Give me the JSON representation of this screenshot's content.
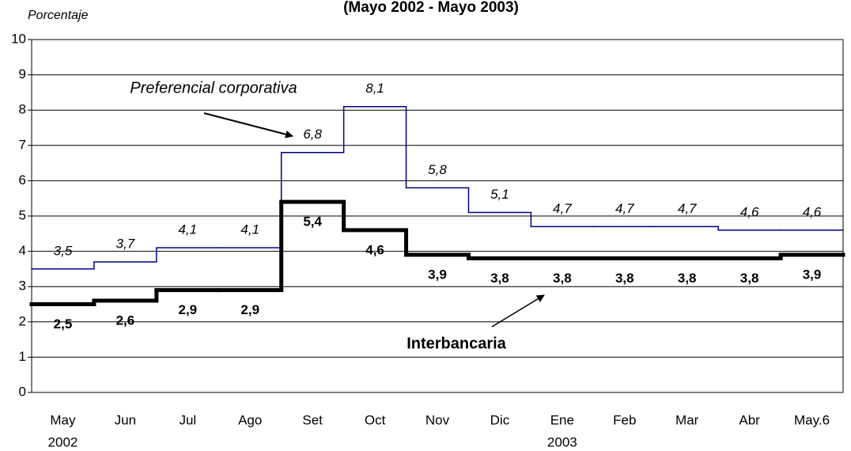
{
  "chart_data": {
    "type": "step-line",
    "title": "(Mayo 2002 - Mayo 2003)",
    "y_label": "Porcentaje",
    "categories": [
      "May",
      "Jun",
      "Jul",
      "Ago",
      "Set",
      "Oct",
      "Nov",
      "Dic",
      "Ene",
      "Feb",
      "Mar",
      "Abr",
      "May.6"
    ],
    "category_sublabels": [
      "2002",
      null,
      null,
      null,
      null,
      null,
      null,
      null,
      "2003",
      null,
      null,
      null,
      null
    ],
    "series": [
      {
        "name": "Preferencial corporativa",
        "color": "#000080",
        "width": 1.5,
        "label_style": "italic",
        "label_side": "above",
        "values": [
          3.5,
          3.7,
          4.1,
          4.1,
          6.8,
          8.1,
          5.8,
          5.1,
          4.7,
          4.7,
          4.7,
          4.6,
          4.6
        ],
        "value_labels": [
          "3,5",
          "3,7",
          "4,1",
          "4,1",
          "6,8",
          "8,1",
          "5,8",
          "5,1",
          "4,7",
          "4,7",
          "4,7",
          "4,6",
          "4,6"
        ]
      },
      {
        "name": "Interbancaria",
        "color": "#000000",
        "width": 5,
        "label_style": "bold",
        "label_side": "below",
        "values": [
          2.5,
          2.6,
          2.9,
          2.9,
          5.4,
          4.6,
          3.9,
          3.8,
          3.8,
          3.8,
          3.8,
          3.8,
          3.9
        ],
        "value_labels": [
          "2,5",
          "2,6",
          "2,9",
          "2,9",
          "5,4",
          "4,6",
          "3,9",
          "3,8",
          "3,8",
          "3,8",
          "3,8",
          "3,8",
          "3,9"
        ]
      }
    ],
    "ylim": [
      0,
      10
    ],
    "yticks": [
      0,
      1,
      2,
      3,
      4,
      5,
      6,
      7,
      8,
      9,
      10
    ],
    "grid": true
  }
}
